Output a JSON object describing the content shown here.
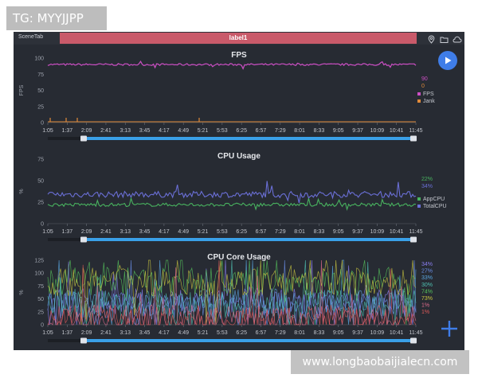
{
  "watermark": {
    "top": "TG: MYYJJPP",
    "bottom": "www.longbaobaijialecn.com"
  },
  "app": {
    "scene_tab": "SceneTab",
    "tab_label": "label1",
    "icons": [
      "location-icon",
      "folder-icon",
      "cloud-icon",
      "play-icon",
      "add-icon"
    ]
  },
  "time_ticks": [
    "1:05",
    "1:37",
    "2:09",
    "2:41",
    "3:13",
    "3:45",
    "4:17",
    "4:49",
    "5:21",
    "5:53",
    "6:25",
    "6:57",
    "7:29",
    "8:01",
    "8:33",
    "9:05",
    "9:37",
    "10:09",
    "10:41",
    "11:45"
  ],
  "chart_data": [
    {
      "type": "line",
      "title": "FPS",
      "ylabel": "FPS",
      "ylim": [
        0,
        100
      ],
      "yticks": [
        "100",
        "75",
        "50",
        "25",
        "0"
      ],
      "series": [
        {
          "name": "FPS",
          "color": "#cc4fc4",
          "current": "90",
          "level": 90
        },
        {
          "name": "Jank",
          "color": "#e08a3a",
          "current": "0",
          "level": 0
        }
      ]
    },
    {
      "type": "line",
      "title": "CPU Usage",
      "ylabel": "%",
      "ylim": [
        0,
        75
      ],
      "yticks": [
        "75",
        "50",
        "25",
        "0"
      ],
      "series": [
        {
          "name": "AppCPU",
          "color": "#48b25f",
          "current": "22%",
          "level": 22
        },
        {
          "name": "TotalCPU",
          "color": "#6a6fd6",
          "current": "34%",
          "level": 34
        }
      ]
    },
    {
      "type": "line",
      "title": "CPU Core Usage",
      "ylabel": "%",
      "ylim": [
        0,
        100
      ],
      "yticks": [
        "125",
        "100",
        "75",
        "50",
        "25",
        "0"
      ],
      "core_values": [
        {
          "value": "34%",
          "color": "#8a7ef0"
        },
        {
          "value": "27%",
          "color": "#6a8ee8"
        },
        {
          "value": "33%",
          "color": "#5aa6e0"
        },
        {
          "value": "30%",
          "color": "#4fc0b0"
        },
        {
          "value": "74%",
          "color": "#56c45c"
        },
        {
          "value": "73%",
          "color": "#c9c640"
        },
        {
          "value": "1%",
          "color": "#e06c8c"
        },
        {
          "value": "1%",
          "color": "#e05a5a"
        }
      ]
    }
  ]
}
